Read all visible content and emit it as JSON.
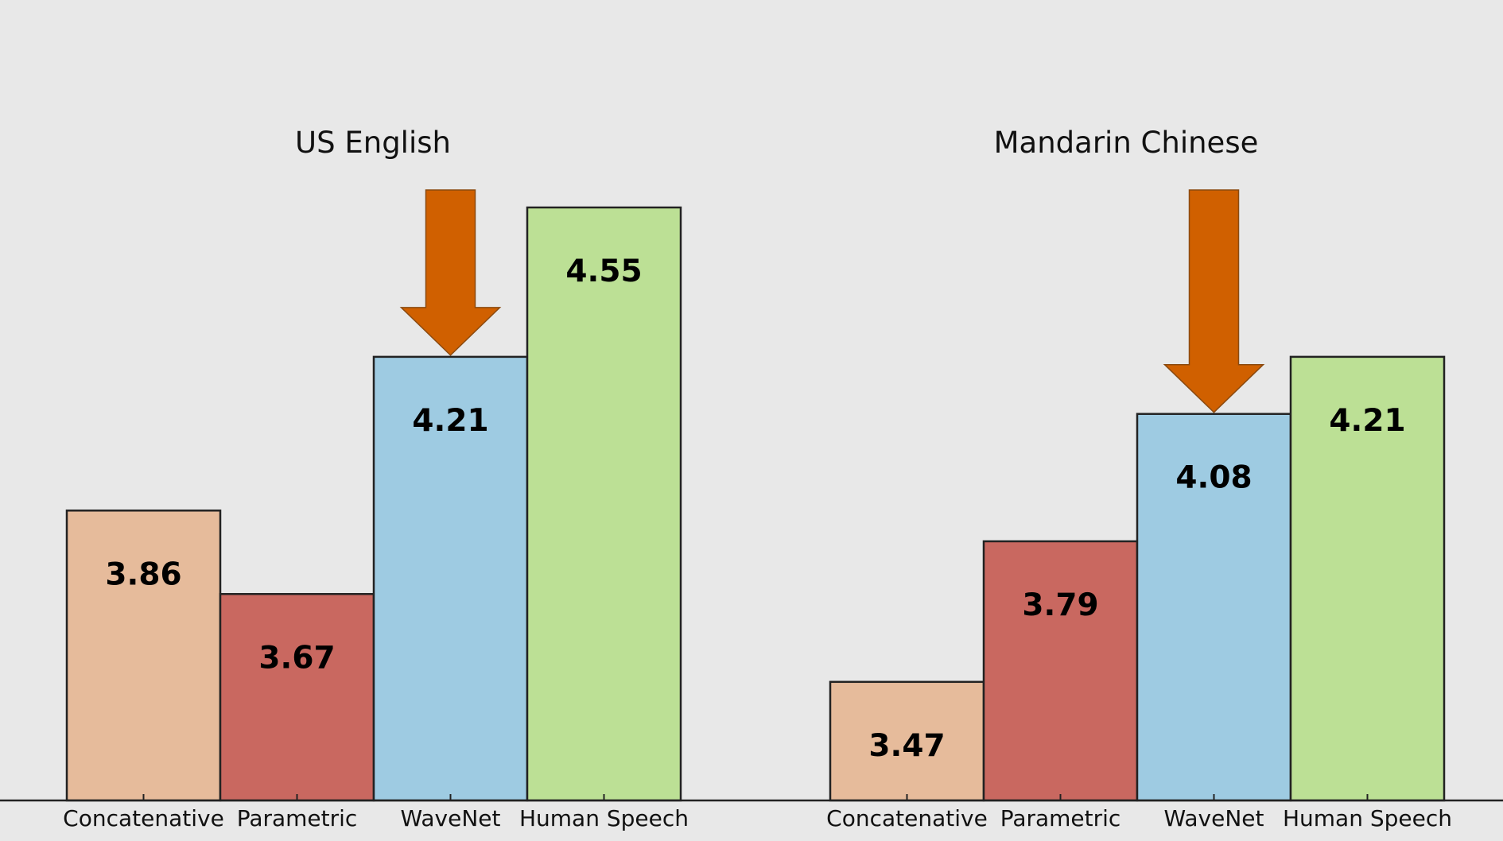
{
  "chart_data": [
    {
      "type": "bar",
      "title": "US English",
      "categories": [
        "Concatenative",
        "Parametric",
        "WaveNet",
        "Human Speech"
      ],
      "values": [
        3.86,
        3.67,
        4.21,
        4.55
      ],
      "value_labels": [
        "3.86",
        "3.67",
        "4.21",
        "4.55"
      ],
      "highlight": "WaveNet",
      "ylim": [
        3.2,
        4.6
      ],
      "xlabel": "",
      "ylabel": "",
      "grid": false,
      "legend": "none"
    },
    {
      "type": "bar",
      "title": "Mandarin Chinese",
      "categories": [
        "Concatenative",
        "Parametric",
        "WaveNet",
        "Human Speech"
      ],
      "values": [
        3.47,
        3.79,
        4.08,
        4.21
      ],
      "value_labels": [
        "3.47",
        "3.79",
        "4.08",
        "4.21"
      ],
      "highlight": "WaveNet",
      "ylim": [
        3.2,
        4.6
      ],
      "xlabel": "",
      "ylabel": "",
      "grid": false,
      "legend": "none"
    }
  ],
  "colors": {
    "background": "#e8e8e8",
    "concatenative": "#e6bb9b",
    "parametric": "#c96860",
    "wavenet": "#9ecbe2",
    "human_speech": "#bce095",
    "arrow": "#d06000",
    "arrow_outline": "#8a4a10",
    "bar_outline": "#222222",
    "axis": "#222222"
  },
  "icons": {
    "highlight_marker": "down-arrow-icon"
  }
}
